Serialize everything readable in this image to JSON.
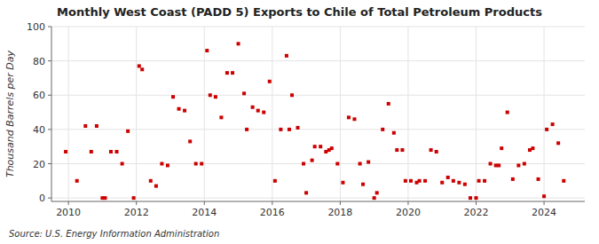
{
  "chart_data": {
    "type": "scatter",
    "title": "Monthly West Coast (PADD 5) Exports to Chile of Total Petroleum Products",
    "ylabel": "Thousand Barrels per Day",
    "source": "Source: U.S. Energy Information Administration",
    "color": "#cc0000",
    "marker": "square",
    "grid": true,
    "xlim": [
      2009.5,
      2025.2
    ],
    "ylim": [
      -2,
      100
    ],
    "xticks": [
      2010,
      2012,
      2014,
      2016,
      2018,
      2020,
      2022,
      2024
    ],
    "yticks": [
      0,
      20,
      40,
      60,
      80,
      100
    ],
    "x": [
      2009.92,
      2010.25,
      2010.5,
      2010.67,
      2010.83,
      2011.0,
      2011.08,
      2011.25,
      2011.42,
      2011.58,
      2011.75,
      2011.92,
      2012.08,
      2012.17,
      2012.42,
      2012.58,
      2012.75,
      2012.92,
      2013.08,
      2013.25,
      2013.42,
      2013.58,
      2013.75,
      2013.92,
      2014.08,
      2014.17,
      2014.33,
      2014.5,
      2014.67,
      2014.83,
      2015.0,
      2015.17,
      2015.25,
      2015.42,
      2015.58,
      2015.75,
      2015.92,
      2016.08,
      2016.25,
      2016.42,
      2016.5,
      2016.58,
      2016.75,
      2016.92,
      2017.0,
      2017.17,
      2017.25,
      2017.42,
      2017.58,
      2017.67,
      2017.75,
      2017.92,
      2018.08,
      2018.25,
      2018.42,
      2018.58,
      2018.67,
      2018.83,
      2019.0,
      2019.08,
      2019.25,
      2019.42,
      2019.58,
      2019.67,
      2019.83,
      2019.92,
      2020.08,
      2020.25,
      2020.33,
      2020.5,
      2020.67,
      2020.83,
      2021.0,
      2021.17,
      2021.33,
      2021.5,
      2021.67,
      2021.83,
      2022.0,
      2022.08,
      2022.25,
      2022.42,
      2022.58,
      2022.67,
      2022.75,
      2022.92,
      2023.08,
      2023.25,
      2023.42,
      2023.58,
      2023.67,
      2023.83,
      2024.0,
      2024.08,
      2024.25,
      2024.42,
      2024.58
    ],
    "values": [
      27,
      10,
      42,
      27,
      42,
      0,
      0,
      27,
      27,
      20,
      39,
      0,
      77,
      75,
      10,
      7,
      20,
      19,
      59,
      52,
      51,
      33,
      20,
      20,
      86,
      60,
      59,
      47,
      73,
      73,
      90,
      61,
      40,
      53,
      51,
      50,
      68,
      10,
      40,
      83,
      40,
      60,
      41,
      20,
      3,
      22,
      30,
      30,
      27,
      28,
      29,
      20,
      9,
      47,
      46,
      20,
      8,
      21,
      0,
      3,
      40,
      55,
      38,
      28,
      28,
      10,
      10,
      9,
      10,
      10,
      28,
      27,
      9,
      12,
      10,
      9,
      8,
      0,
      0,
      10,
      10,
      20,
      19,
      19,
      29,
      50,
      11,
      19,
      20,
      28,
      29,
      11,
      1,
      40,
      43,
      32,
      10
    ]
  }
}
